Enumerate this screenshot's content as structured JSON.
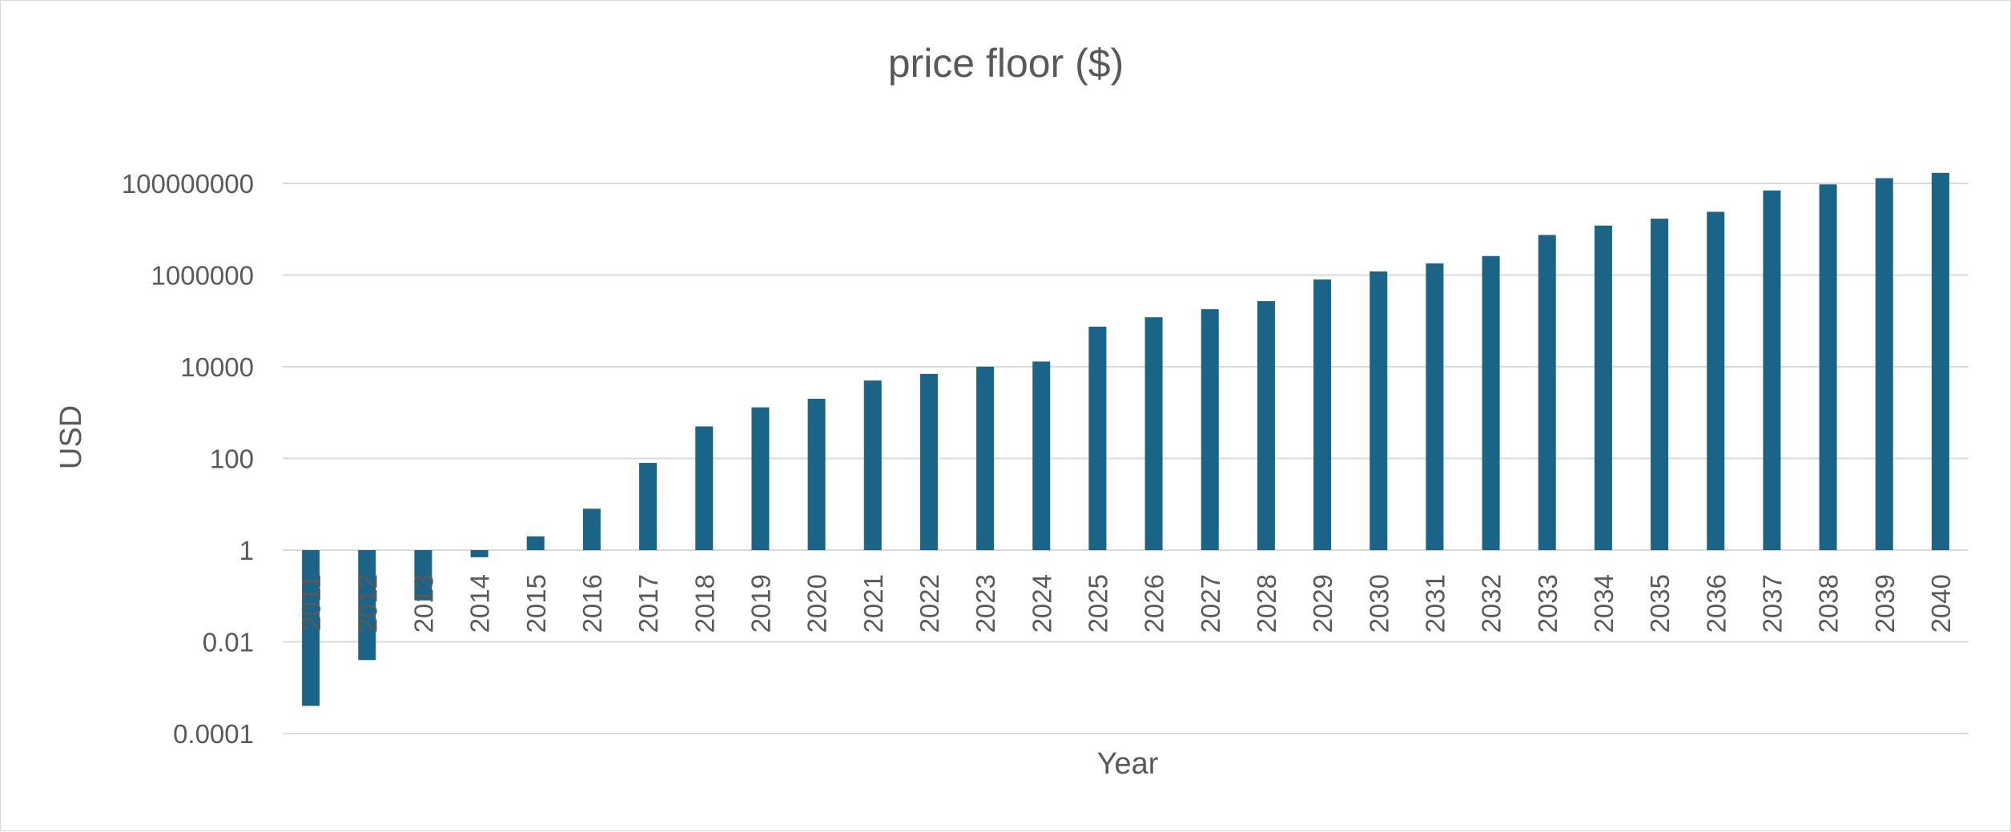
{
  "chart_data": {
    "type": "bar",
    "title": "price floor ($)",
    "xlabel": "Year",
    "ylabel": "USD",
    "yscale": "log",
    "ylim": [
      0.0001,
      100000000
    ],
    "yticks": [
      "100000000",
      "1000000",
      "10000",
      "100",
      "1",
      "0.01",
      "0.0001"
    ],
    "grid": true,
    "legend": "none",
    "bar_color": "#1a6487",
    "categories": [
      "2011",
      "2012",
      "2013",
      "2014",
      "2015",
      "2016",
      "2017",
      "2018",
      "2019",
      "2020",
      "2021",
      "2022",
      "2023",
      "2024",
      "2025",
      "2026",
      "2027",
      "2028",
      "2029",
      "2030",
      "2031",
      "2032",
      "2033",
      "2034",
      "2035",
      "2036",
      "2037",
      "2038",
      "2039",
      "2040"
    ],
    "values": [
      0.0004,
      0.004,
      0.08,
      0.7,
      2,
      8,
      80,
      500,
      1300,
      2000,
      5000,
      7000,
      10000,
      13000,
      75000,
      120000,
      180000,
      270000,
      800000,
      1200000,
      1800000,
      2600000,
      7500000,
      12000000,
      17000000,
      24000000,
      70000000,
      95000000,
      130000000,
      170000000
    ]
  }
}
